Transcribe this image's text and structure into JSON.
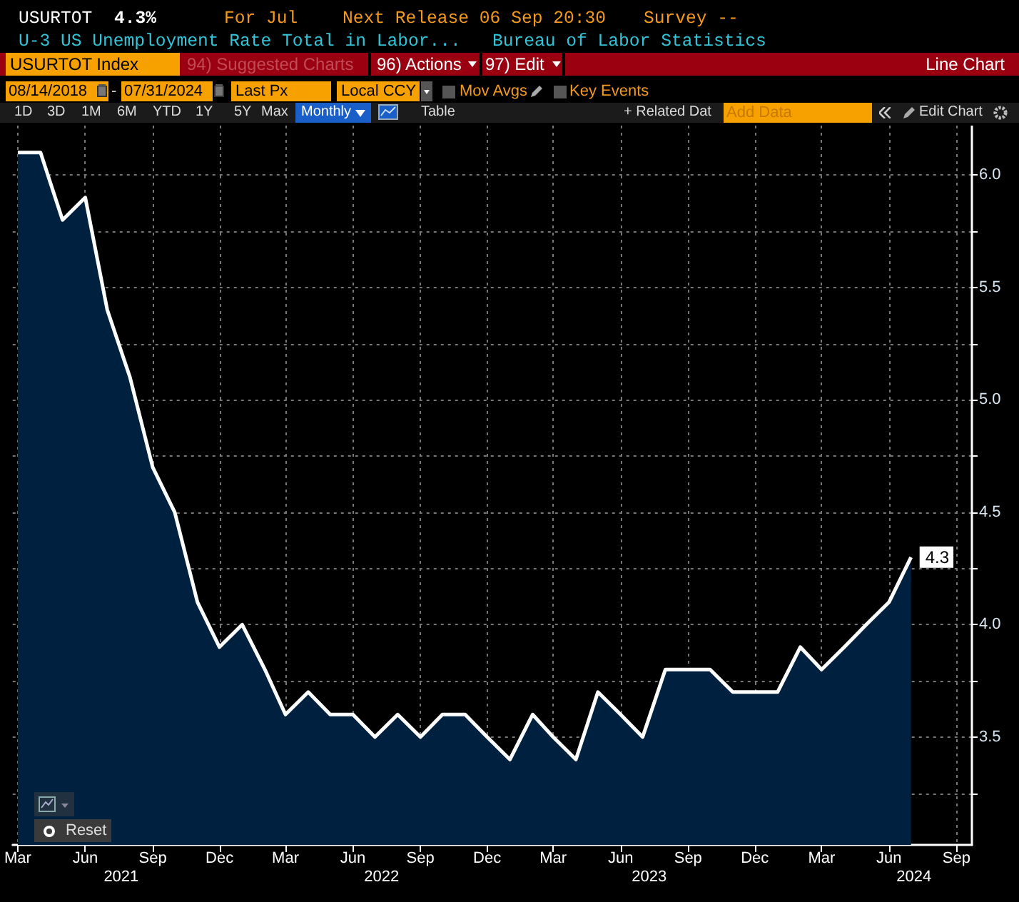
{
  "chart_data": {
    "type": "area",
    "title": "U-3 US Unemployment Rate Total in Labor...",
    "subtitle": "Bureau of Labor Statistics",
    "annotations": [
      "USURTOT",
      "4.3%",
      "For Jul",
      "Next Release 06 Sep 20:30",
      "Survey --",
      "USURTOT Index",
      "94) Suggested Charts",
      "96) Actions",
      "97) Edit",
      "Line Chart",
      "08/14/2018",
      "-",
      "07/31/2024",
      "Last Px",
      "Local CCY",
      "Mov Avgs",
      "Key Events",
      "1D",
      "3D",
      "1M",
      "6M",
      "YTD",
      "1Y",
      "5Y",
      "Max",
      "Monthly",
      "Table",
      "+ Related Dat",
      "Add Data",
      "Edit Chart",
      "Reset"
    ],
    "x": [
      "2021-03",
      "2021-04",
      "2021-05",
      "2021-06",
      "2021-07",
      "2021-08",
      "2021-09",
      "2021-10",
      "2021-11",
      "2021-12",
      "2022-01",
      "2022-02",
      "2022-03",
      "2022-04",
      "2022-05",
      "2022-06",
      "2022-07",
      "2022-08",
      "2022-09",
      "2022-10",
      "2022-11",
      "2022-12",
      "2023-01",
      "2023-02",
      "2023-03",
      "2023-04",
      "2023-05",
      "2023-06",
      "2023-07",
      "2023-08",
      "2023-09",
      "2023-10",
      "2023-11",
      "2023-12",
      "2024-01",
      "2024-02",
      "2024-03",
      "2024-04",
      "2024-05",
      "2024-06",
      "2024-07"
    ],
    "series": [
      {
        "color": "#ffffff",
        "values": [
          6.1,
          6.1,
          5.8,
          5.9,
          5.4,
          5.1,
          4.7,
          4.5,
          4.1,
          3.9,
          4.0,
          3.8,
          3.6,
          3.7,
          3.6,
          3.6,
          3.5,
          3.6,
          3.5,
          3.6,
          3.6,
          3.5,
          3.4,
          3.6,
          3.5,
          3.4,
          3.7,
          3.6,
          3.5,
          3.8,
          3.8,
          3.8,
          3.7,
          3.7,
          3.7,
          3.9,
          3.8,
          3.9,
          4.0,
          4.1,
          4.3
        ],
        "value_labels": [
          null,
          null,
          null,
          null,
          null,
          null,
          null,
          null,
          null,
          null,
          null,
          null,
          null,
          null,
          null,
          null,
          null,
          null,
          null,
          null,
          null,
          null,
          null,
          null,
          null,
          null,
          null,
          null,
          null,
          null,
          null,
          null,
          null,
          null,
          null,
          null,
          null,
          null,
          null,
          null,
          "4.3"
        ]
      }
    ],
    "xlim": [
      "2021-02-22",
      "2024-09-22"
    ],
    "xticks": [
      {
        "value": "2021-03",
        "label": "Mar"
      },
      {
        "value": "2021-06",
        "label": "Jun"
      },
      {
        "value": "2021-09",
        "label": "Sep"
      },
      {
        "value": "2021-12",
        "label": "Dec"
      },
      {
        "value": "2022-03",
        "label": "Mar"
      },
      {
        "value": "2022-06",
        "label": "Jun"
      },
      {
        "value": "2022-09",
        "label": "Sep"
      },
      {
        "value": "2022-12",
        "label": "Dec"
      },
      {
        "value": "2023-03",
        "label": "Mar"
      },
      {
        "value": "2023-06",
        "label": "Jun"
      },
      {
        "value": "2023-09",
        "label": "Sep"
      },
      {
        "value": "2023-12",
        "label": "Dec"
      },
      {
        "value": "2024-03",
        "label": "Mar"
      },
      {
        "value": "2024-06",
        "label": "Jun"
      },
      {
        "value": "2024-09",
        "label": "Sep"
      }
    ],
    "x2lim": [
      "2021-02-22",
      "2024-09-22"
    ],
    "x2ticks": [
      {
        "value": "2021-07-20",
        "label": "2021"
      },
      {
        "value": "2022-07-10",
        "label": "2022"
      },
      {
        "value": "2023-07-10",
        "label": "2023"
      },
      {
        "value": "2024-07-05",
        "label": "2024"
      }
    ],
    "ylim": [
      3.02,
      6.22
    ],
    "yticks": [
      {
        "value": 3.25,
        "label": null
      },
      {
        "value": 3.5,
        "label": "3.5"
      },
      {
        "value": 3.75,
        "label": null
      },
      {
        "value": 4,
        "label": "4.0"
      },
      {
        "value": 4.25,
        "label": null
      },
      {
        "value": 4.5,
        "label": "4.5"
      },
      {
        "value": 4.75,
        "label": null
      },
      {
        "value": 5,
        "label": "5.0"
      },
      {
        "value": 5.25,
        "label": null
      },
      {
        "value": 5.5,
        "label": "5.5"
      },
      {
        "value": 5.75,
        "label": null
      },
      {
        "value": 6,
        "label": "6.0"
      }
    ],
    "grid": true
  }
}
